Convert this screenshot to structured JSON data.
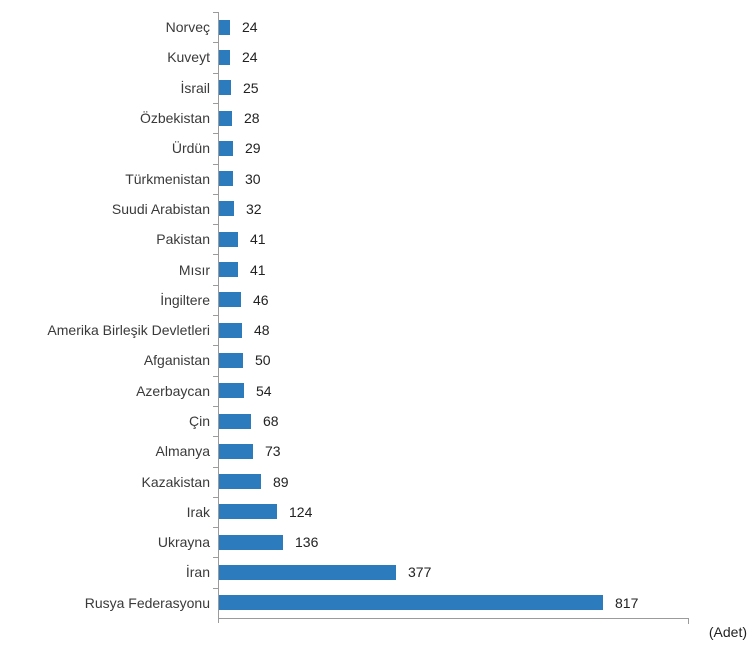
{
  "chart_data": {
    "type": "bar",
    "orientation": "horizontal",
    "title": "",
    "xlabel": "",
    "ylabel": "",
    "unit_label": "(Adet)",
    "categories": [
      "Norveç",
      "Kuveyt",
      "İsrail",
      "Özbekistan",
      "Ürdün",
      "Türkmenistan",
      "Suudi Arabistan",
      "Pakistan",
      "Mısır",
      "İngiltere",
      "Amerika Birleşik Devletleri",
      "Afganistan",
      "Azerbaycan",
      "Çin",
      "Almanya",
      "Kazakistan",
      "Irak",
      "Ukrayna",
      "İran",
      "Rusya Federasyonu"
    ],
    "values": [
      24,
      24,
      25,
      28,
      29,
      30,
      32,
      41,
      41,
      46,
      48,
      50,
      54,
      68,
      73,
      89,
      124,
      136,
      377,
      817
    ],
    "xlim": [
      0,
      1000
    ],
    "value_labels_shown": true,
    "grid": false,
    "legend": false,
    "bar_color": "#2C7BBC",
    "axis_color": "#9B9B9B",
    "label_color": "#3A3A3A",
    "value_color": "#222222"
  }
}
